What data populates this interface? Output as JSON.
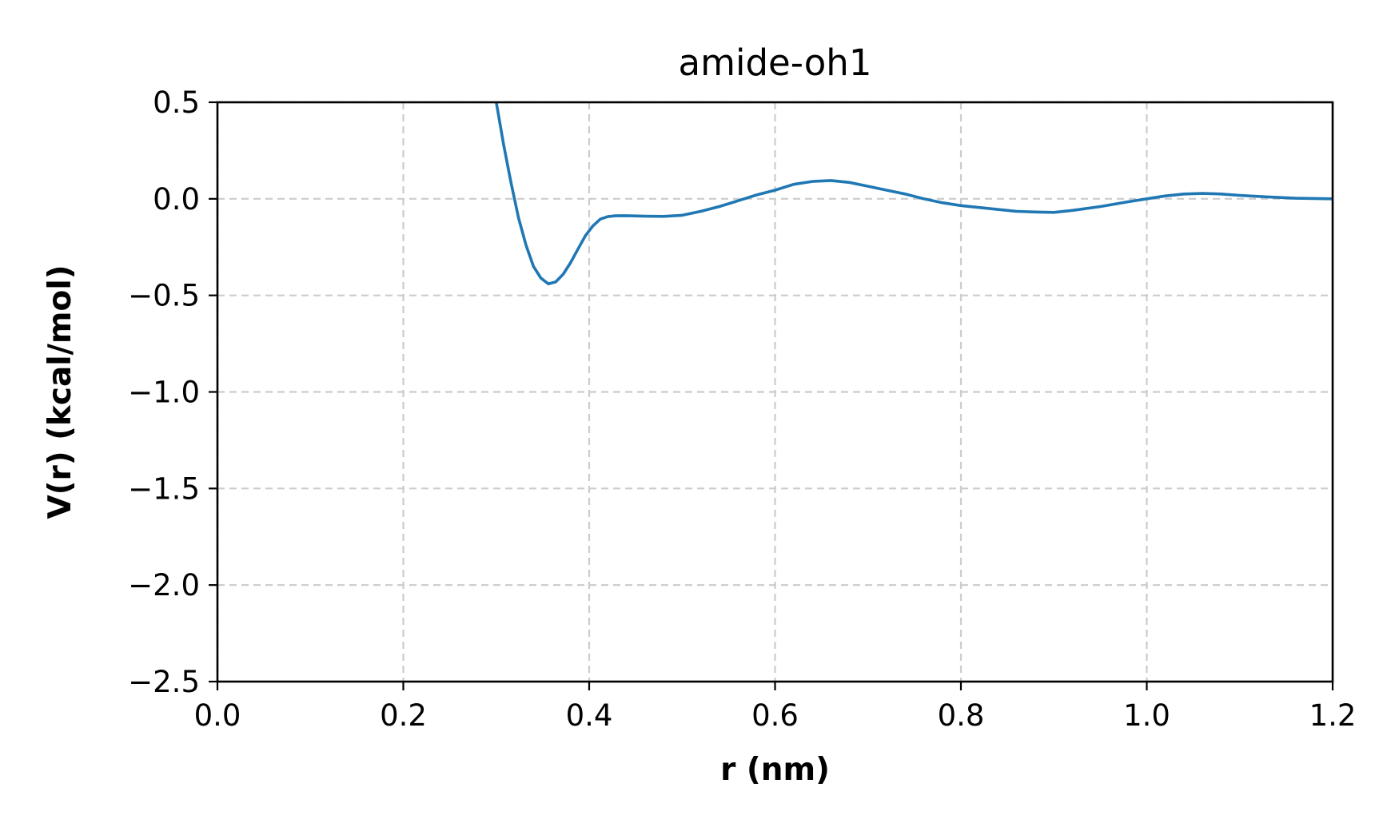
{
  "chart_data": {
    "type": "line",
    "title": "amide-oh1",
    "xlabel": "r (nm)",
    "ylabel": "V(r) (kcal/mol)",
    "xlim": [
      0.0,
      1.2
    ],
    "ylim": [
      -2.5,
      0.5
    ],
    "x_ticks": [
      0.0,
      0.2,
      0.4,
      0.6,
      0.8,
      1.0,
      1.2
    ],
    "x_tick_labels": [
      "0.0",
      "0.2",
      "0.4",
      "0.6",
      "0.8",
      "1.0",
      "1.2"
    ],
    "y_ticks": [
      0.5,
      0.0,
      -0.5,
      -1.0,
      -1.5,
      -2.0,
      -2.5
    ],
    "y_tick_labels": [
      "0.5",
      "0.0",
      "−0.5",
      "−1.0",
      "−1.5",
      "−2.0",
      "−2.5"
    ],
    "grid": true,
    "grid_style": "dashed",
    "series": [
      {
        "color": "#1f77b4",
        "x": [
          0.3,
          0.308,
          0.316,
          0.324,
          0.332,
          0.34,
          0.348,
          0.356,
          0.364,
          0.372,
          0.38,
          0.388,
          0.396,
          0.404,
          0.412,
          0.42,
          0.428,
          0.436,
          0.444,
          0.46,
          0.48,
          0.5,
          0.52,
          0.54,
          0.56,
          0.58,
          0.6,
          0.62,
          0.64,
          0.66,
          0.68,
          0.7,
          0.72,
          0.74,
          0.76,
          0.78,
          0.8,
          0.83,
          0.86,
          0.88,
          0.9,
          0.92,
          0.95,
          0.98,
          1.0,
          1.02,
          1.04,
          1.06,
          1.08,
          1.1,
          1.13,
          1.16,
          1.2
        ],
        "y": [
          0.5,
          0.28,
          0.08,
          -0.1,
          -0.24,
          -0.35,
          -0.41,
          -0.44,
          -0.43,
          -0.39,
          -0.33,
          -0.26,
          -0.19,
          -0.14,
          -0.105,
          -0.092,
          -0.088,
          -0.087,
          -0.088,
          -0.09,
          -0.091,
          -0.085,
          -0.065,
          -0.04,
          -0.01,
          0.02,
          0.045,
          0.075,
          0.09,
          0.095,
          0.085,
          0.065,
          0.045,
          0.025,
          0.0,
          -0.02,
          -0.035,
          -0.05,
          -0.065,
          -0.068,
          -0.07,
          -0.06,
          -0.04,
          -0.015,
          0.0,
          0.015,
          0.025,
          0.028,
          0.025,
          0.018,
          0.01,
          0.003,
          0.0
        ]
      }
    ]
  }
}
